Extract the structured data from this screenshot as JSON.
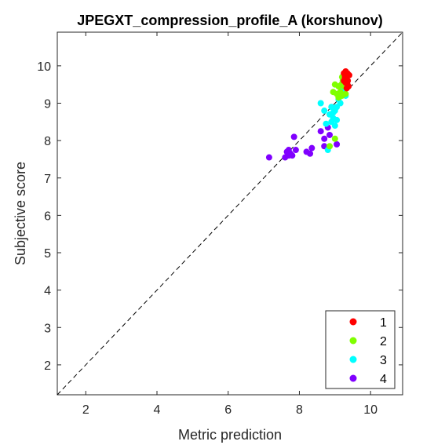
{
  "chart_data": {
    "type": "scatter",
    "title": "JPEGXT_compression_profile_A (korshunov)",
    "xlabel": "Metric prediction",
    "ylabel": "Subjective score",
    "xlim": [
      1.2,
      10.9
    ],
    "ylim": [
      1.2,
      10.9
    ],
    "xticks": [
      "2",
      "4",
      "6",
      "8",
      "10"
    ],
    "yticks": [
      "2",
      "3",
      "4",
      "5",
      "6",
      "7",
      "8",
      "9",
      "10"
    ],
    "grid": false,
    "legend_position": "bottom-right",
    "reference_line": "dashed diagonal y = x",
    "series": [
      {
        "name": "1",
        "color": "#ff0000",
        "points": [
          [
            9.25,
            9.8
          ],
          [
            9.3,
            9.85
          ],
          [
            9.35,
            9.8
          ],
          [
            9.28,
            9.7
          ],
          [
            9.32,
            9.65
          ],
          [
            9.36,
            9.6
          ],
          [
            9.3,
            9.55
          ],
          [
            9.35,
            9.5
          ],
          [
            9.38,
            9.45
          ],
          [
            9.25,
            9.6
          ],
          [
            9.4,
            9.75
          ],
          [
            9.33,
            9.4
          ]
        ]
      },
      {
        "name": "2",
        "color": "#80ff00",
        "points": [
          [
            9.2,
            9.7
          ],
          [
            9.22,
            9.6
          ],
          [
            9.18,
            9.5
          ],
          [
            9.25,
            9.45
          ],
          [
            9.0,
            9.5
          ],
          [
            9.1,
            9.45
          ],
          [
            8.95,
            9.3
          ],
          [
            9.05,
            9.25
          ],
          [
            9.15,
            9.3
          ],
          [
            9.2,
            9.2
          ],
          [
            9.1,
            9.15
          ],
          [
            9.3,
            9.25
          ],
          [
            9.0,
            8.05
          ],
          [
            8.85,
            7.85
          ]
        ]
      },
      {
        "name": "3",
        "color": "#00ffff",
        "points": [
          [
            9.2,
            9.35
          ],
          [
            9.3,
            9.2
          ],
          [
            9.1,
            9.1
          ],
          [
            9.15,
            9.0
          ],
          [
            8.9,
            8.9
          ],
          [
            9.0,
            8.8
          ],
          [
            8.7,
            8.8
          ],
          [
            8.6,
            9.0
          ],
          [
            8.85,
            8.7
          ],
          [
            8.95,
            8.6
          ],
          [
            8.9,
            8.5
          ],
          [
            8.75,
            8.45
          ],
          [
            9.05,
            8.55
          ],
          [
            9.0,
            8.4
          ],
          [
            8.8,
            7.75
          ],
          [
            9.05,
            8.9
          ],
          [
            8.95,
            8.75
          ]
        ]
      },
      {
        "name": "4",
        "color": "#8000ff",
        "points": [
          [
            7.15,
            7.55
          ],
          [
            7.6,
            7.55
          ],
          [
            7.7,
            7.6
          ],
          [
            7.65,
            7.7
          ],
          [
            7.75,
            7.65
          ],
          [
            7.8,
            7.6
          ],
          [
            7.9,
            7.75
          ],
          [
            7.7,
            7.75
          ],
          [
            7.85,
            8.1
          ],
          [
            8.2,
            7.7
          ],
          [
            8.3,
            7.65
          ],
          [
            8.35,
            7.8
          ],
          [
            8.6,
            8.25
          ],
          [
            8.7,
            7.85
          ],
          [
            8.7,
            8.05
          ],
          [
            8.85,
            8.15
          ],
          [
            8.8,
            8.35
          ],
          [
            9.05,
            7.9
          ]
        ]
      }
    ]
  }
}
